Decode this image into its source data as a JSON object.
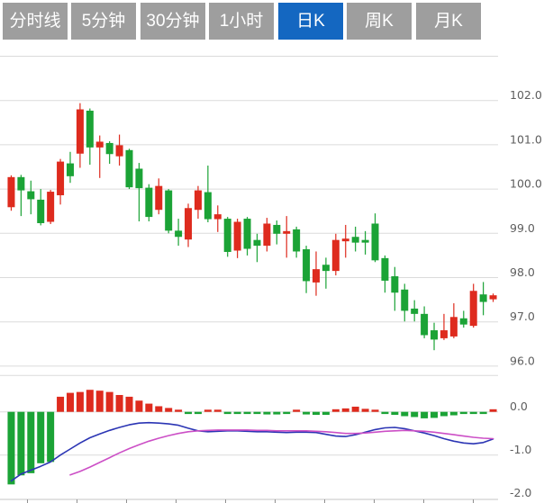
{
  "tabs": {
    "items": [
      {
        "label": "分时线",
        "active": false
      },
      {
        "label": "5分钟",
        "active": false
      },
      {
        "label": "30分钟",
        "active": false
      },
      {
        "label": "1小时",
        "active": false
      },
      {
        "label": "日K",
        "active": true
      },
      {
        "label": "周K",
        "active": false
      },
      {
        "label": "月K",
        "active": false
      }
    ],
    "colors": {
      "inactive_bg": "#9E9E9E",
      "active_bg": "#1467C1",
      "text": "#FFFFFF"
    }
  },
  "chart_data": {
    "type": "candlestick_with_macd",
    "title": "",
    "price_axis": {
      "labels": [
        "102.0",
        "101.0",
        "100.0",
        "99.0",
        "98.0",
        "97.0",
        "96.0"
      ],
      "values": [
        102,
        101,
        100,
        99,
        98,
        97,
        96
      ],
      "grid_values": [
        103,
        102,
        101,
        100,
        99,
        98,
        97,
        96
      ],
      "visible_range": [
        96,
        103
      ],
      "grid": true
    },
    "macd_axis": {
      "labels": [
        "0.0",
        "-1.0",
        "-2.0"
      ],
      "values": [
        0,
        -1,
        -2
      ],
      "visible_range": [
        -2,
        0.6
      ]
    },
    "candles": [
      {
        "o": 99.59,
        "h": 100.31,
        "l": 99.51,
        "c": 100.27
      },
      {
        "o": 100.27,
        "h": 100.32,
        "l": 99.39,
        "c": 99.97
      },
      {
        "o": 99.95,
        "h": 100.19,
        "l": 99.43,
        "c": 99.77
      },
      {
        "o": 99.76,
        "h": 100.0,
        "l": 99.18,
        "c": 99.23
      },
      {
        "o": 99.26,
        "h": 99.98,
        "l": 99.21,
        "c": 99.94
      },
      {
        "o": 99.86,
        "h": 100.68,
        "l": 99.65,
        "c": 100.62
      },
      {
        "o": 100.58,
        "h": 100.84,
        "l": 100.14,
        "c": 100.29
      },
      {
        "o": 100.8,
        "h": 101.94,
        "l": 100.48,
        "c": 101.8
      },
      {
        "o": 101.77,
        "h": 101.82,
        "l": 100.55,
        "c": 100.94
      },
      {
        "o": 100.94,
        "h": 101.21,
        "l": 100.25,
        "c": 101.07
      },
      {
        "o": 101.04,
        "h": 101.08,
        "l": 100.57,
        "c": 100.79
      },
      {
        "o": 100.74,
        "h": 101.23,
        "l": 100.53,
        "c": 100.99
      },
      {
        "o": 100.88,
        "h": 100.91,
        "l": 100.0,
        "c": 100.04
      },
      {
        "o": 100.46,
        "h": 100.59,
        "l": 99.27,
        "c": 100.02
      },
      {
        "o": 100.03,
        "h": 100.11,
        "l": 99.27,
        "c": 99.37
      },
      {
        "o": 99.53,
        "h": 100.24,
        "l": 99.43,
        "c": 100.07
      },
      {
        "o": 99.97,
        "h": 100.0,
        "l": 99.0,
        "c": 99.06
      },
      {
        "o": 99.06,
        "h": 99.33,
        "l": 98.72,
        "c": 98.92
      },
      {
        "o": 98.86,
        "h": 99.67,
        "l": 98.69,
        "c": 99.57
      },
      {
        "o": 99.53,
        "h": 100.07,
        "l": 99.33,
        "c": 99.97
      },
      {
        "o": 99.93,
        "h": 100.53,
        "l": 99.25,
        "c": 99.32
      },
      {
        "o": 99.32,
        "h": 99.63,
        "l": 99.03,
        "c": 99.43
      },
      {
        "o": 99.33,
        "h": 99.37,
        "l": 98.47,
        "c": 98.58
      },
      {
        "o": 98.61,
        "h": 99.33,
        "l": 98.44,
        "c": 99.26
      },
      {
        "o": 99.33,
        "h": 99.37,
        "l": 98.5,
        "c": 98.65
      },
      {
        "o": 98.85,
        "h": 98.99,
        "l": 98.35,
        "c": 98.72
      },
      {
        "o": 98.72,
        "h": 99.35,
        "l": 98.59,
        "c": 99.22
      },
      {
        "o": 99.19,
        "h": 99.29,
        "l": 98.75,
        "c": 98.99
      },
      {
        "o": 98.99,
        "h": 99.39,
        "l": 98.45,
        "c": 99.05
      },
      {
        "o": 99.09,
        "h": 99.15,
        "l": 98.45,
        "c": 98.59
      },
      {
        "o": 98.64,
        "h": 98.72,
        "l": 97.65,
        "c": 97.92
      },
      {
        "o": 97.89,
        "h": 98.59,
        "l": 97.59,
        "c": 98.19
      },
      {
        "o": 98.29,
        "h": 98.45,
        "l": 97.75,
        "c": 98.15
      },
      {
        "o": 98.15,
        "h": 98.99,
        "l": 98.05,
        "c": 98.85
      },
      {
        "o": 98.82,
        "h": 99.19,
        "l": 98.45,
        "c": 98.88
      },
      {
        "o": 98.92,
        "h": 99.15,
        "l": 98.59,
        "c": 98.79
      },
      {
        "o": 98.85,
        "h": 99.05,
        "l": 98.52,
        "c": 98.79
      },
      {
        "o": 99.22,
        "h": 99.45,
        "l": 98.35,
        "c": 98.39
      },
      {
        "o": 98.44,
        "h": 98.5,
        "l": 97.66,
        "c": 97.93
      },
      {
        "o": 98.03,
        "h": 98.24,
        "l": 97.25,
        "c": 97.66
      },
      {
        "o": 97.73,
        "h": 97.86,
        "l": 97.01,
        "c": 97.25
      },
      {
        "o": 97.3,
        "h": 97.49,
        "l": 97.01,
        "c": 97.18
      },
      {
        "o": 97.18,
        "h": 97.35,
        "l": 96.63,
        "c": 96.7
      },
      {
        "o": 96.81,
        "h": 96.98,
        "l": 96.36,
        "c": 96.6
      },
      {
        "o": 96.63,
        "h": 97.18,
        "l": 96.59,
        "c": 96.81
      },
      {
        "o": 96.67,
        "h": 97.42,
        "l": 96.63,
        "c": 97.11
      },
      {
        "o": 97.08,
        "h": 97.25,
        "l": 96.87,
        "c": 96.94
      },
      {
        "o": 96.91,
        "h": 97.86,
        "l": 96.87,
        "c": 97.7
      },
      {
        "o": 97.62,
        "h": 97.9,
        "l": 97.15,
        "c": 97.45
      },
      {
        "o": 97.51,
        "h": 97.64,
        "l": 97.45,
        "c": 97.6
      }
    ],
    "macd": {
      "histogram": [
        -1.68,
        -1.47,
        -1.42,
        -1.19,
        -1.16,
        0.35,
        0.44,
        0.46,
        0.51,
        0.49,
        0.46,
        0.39,
        0.35,
        0.26,
        0.19,
        0.13,
        0.09,
        0.03,
        -0.04,
        -0.04,
        0.03,
        0.01,
        -0.03,
        -0.05,
        -0.05,
        -0.05,
        -0.06,
        -0.06,
        -0.03,
        0.03,
        -0.06,
        -0.07,
        -0.07,
        0.06,
        0.08,
        0.12,
        0.07,
        0.03,
        -0.04,
        -0.07,
        -0.1,
        -0.12,
        -0.15,
        -0.14,
        -0.1,
        -0.08,
        -0.05,
        -0.04,
        -0.05,
        0.06
      ],
      "dif": [
        -1.6,
        -1.44,
        -1.35,
        -1.26,
        -1.16,
        -1.0,
        -0.86,
        -0.72,
        -0.6,
        -0.51,
        -0.43,
        -0.36,
        -0.3,
        -0.26,
        -0.25,
        -0.26,
        -0.28,
        -0.31,
        -0.38,
        -0.44,
        -0.46,
        -0.45,
        -0.44,
        -0.44,
        -0.45,
        -0.46,
        -0.46,
        -0.47,
        -0.48,
        -0.47,
        -0.47,
        -0.48,
        -0.52,
        -0.56,
        -0.57,
        -0.53,
        -0.47,
        -0.41,
        -0.37,
        -0.36,
        -0.39,
        -0.44,
        -0.49,
        -0.55,
        -0.62,
        -0.68,
        -0.72,
        -0.74,
        -0.71,
        -0.63
      ],
      "dea": [
        null,
        null,
        null,
        null,
        null,
        null,
        -1.46,
        -1.38,
        -1.28,
        -1.17,
        -1.06,
        -0.95,
        -0.85,
        -0.76,
        -0.68,
        -0.61,
        -0.55,
        -0.5,
        -0.46,
        -0.44,
        -0.43,
        -0.42,
        -0.42,
        -0.42,
        -0.42,
        -0.43,
        -0.43,
        -0.44,
        -0.44,
        -0.44,
        -0.44,
        -0.45,
        -0.46,
        -0.48,
        -0.5,
        -0.5,
        -0.49,
        -0.47,
        -0.45,
        -0.44,
        -0.43,
        -0.44,
        -0.45,
        -0.47,
        -0.5,
        -0.53,
        -0.56,
        -0.59,
        -0.61,
        -0.62
      ]
    },
    "colors": {
      "up": "#DE2B1E",
      "down": "#1BA336",
      "dif_line": "#2B35B4",
      "dea_line": "#CC4FC6",
      "grid": "#DBDBDB",
      "axis_line": "#C4C4C4",
      "tick": "#909090",
      "axis_label": "#5E5E5E"
    },
    "legend_position": "none"
  }
}
